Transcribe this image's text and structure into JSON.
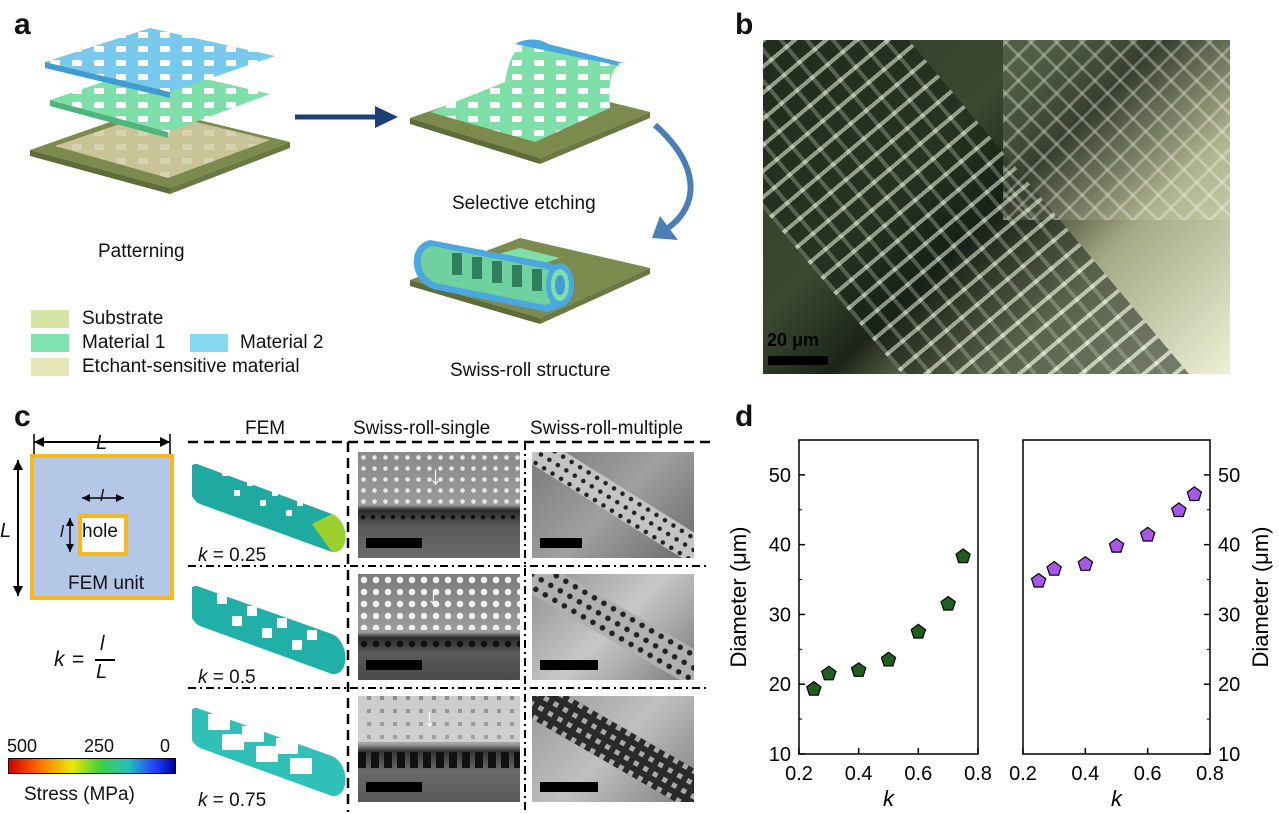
{
  "panels": {
    "a": "a",
    "b": "b",
    "c": "c",
    "d": "d"
  },
  "panel_a": {
    "step_patterning": "Patterning",
    "step_selective_etching": "Selective etching",
    "step_swiss_roll": "Swiss-roll structure",
    "legend": [
      {
        "label": "Substrate",
        "color": "#d6e3a4"
      },
      {
        "label": "Material 1",
        "color": "#7fe3b0"
      },
      {
        "label": "Material 2",
        "color": "#86d8f0"
      },
      {
        "label": "Etchant-sensitive material",
        "color": "#e6e6b8"
      }
    ]
  },
  "panel_b": {
    "scalebar": "20 μm"
  },
  "panel_c": {
    "unit_L_top": "L",
    "unit_L_side": "L",
    "unit_l_top": "l",
    "unit_l_side": "l",
    "hole": "hole",
    "fem_unit": "FEM unit",
    "k_formula_k": "k",
    "k_formula_eq": "=",
    "k_formula_num": "l",
    "k_formula_den": "L",
    "colorbar_ticks": [
      "500",
      "250",
      "0"
    ],
    "colorbar_label": "Stress (MPa)",
    "col_headers": [
      "FEM",
      "Swiss-roll-single",
      "Swiss-roll-multiple"
    ],
    "k_rows": [
      "0.25",
      "0.5",
      "0.75"
    ]
  },
  "chart_data": [
    {
      "type": "scatter",
      "xlabel": "k",
      "ylabel": "Diameter (μm)",
      "xlim": [
        0.2,
        0.8
      ],
      "ylim": [
        10,
        55
      ],
      "xticks": [
        "0.2",
        "0.4",
        "0.6",
        "0.8"
      ],
      "yticks": [
        "10",
        "20",
        "30",
        "40",
        "50"
      ],
      "marker_color": "#1e5e1e",
      "x": [
        0.25,
        0.3,
        0.4,
        0.5,
        0.6,
        0.7,
        0.75
      ],
      "y": [
        19.3,
        21.5,
        22.0,
        23.5,
        27.5,
        31.5,
        38.3
      ]
    },
    {
      "type": "scatter",
      "xlabel": "k",
      "ylabel": "Diameter (μm)",
      "xlim": [
        0.2,
        0.8
      ],
      "ylim": [
        10,
        55
      ],
      "xticks": [
        "0.2",
        "0.4",
        "0.6",
        "0.8"
      ],
      "yticks": [
        "10",
        "20",
        "30",
        "40",
        "50"
      ],
      "marker_color": "#a855e8",
      "x": [
        0.25,
        0.3,
        0.4,
        0.5,
        0.6,
        0.7,
        0.75
      ],
      "y": [
        34.8,
        36.5,
        37.2,
        39.8,
        41.4,
        44.9,
        47.2
      ]
    }
  ]
}
